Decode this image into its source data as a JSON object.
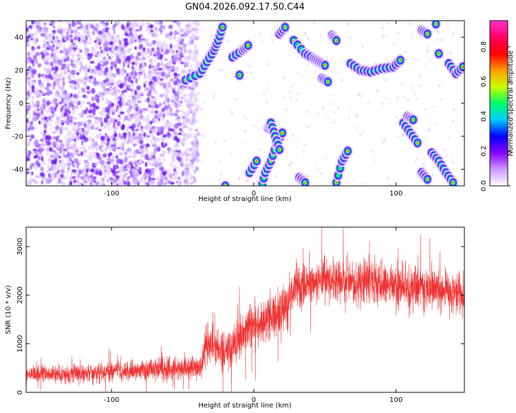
{
  "title": "GN04.2026.092.17.50.C44",
  "chart_data": [
    {
      "type": "heatmap",
      "xlabel": "Height of straight line (km)",
      "ylabel": "Frequency (Hz)",
      "xlim": [
        -160,
        148
      ],
      "ylim": [
        -50,
        50
      ],
      "x_ticks": [
        -100,
        0,
        100
      ],
      "y_ticks": [
        -40,
        -20,
        0,
        20,
        40
      ],
      "colorbar": {
        "label": "Normalized spectral amplitude",
        "range": [
          0,
          0.95
        ],
        "ticks": [
          0.0,
          0.2,
          0.4,
          0.6,
          0.8
        ],
        "colors": [
          "#ffffff",
          "#cc99ff",
          "#8800ff",
          "#0000ff",
          "#00ccff",
          "#00ff66",
          "#ccff00",
          "#ff9900",
          "#ff0000",
          "#ff0066",
          "#ff33cc"
        ]
      },
      "noise_region_x": [
        -160,
        -45
      ],
      "streaks": [
        {
          "x": [
            -48,
            -38,
            -33,
            -28,
            -25,
            -22
          ],
          "y": [
            14,
            18,
            25,
            32,
            38,
            46
          ]
        },
        {
          "x": [
            -15,
            -8,
            -4
          ],
          "y": [
            28,
            32,
            35
          ]
        },
        {
          "x": [
            -10
          ],
          "y": [
            17
          ]
        },
        {
          "x": [
            18,
            22
          ],
          "y": [
            42,
            46
          ]
        },
        {
          "x": [
            28,
            36,
            42,
            46,
            50
          ],
          "y": [
            38,
            30,
            27,
            25,
            23
          ]
        },
        {
          "x": [
            48,
            52
          ],
          "y": [
            15,
            13
          ]
        },
        {
          "x": [
            55,
            58
          ],
          "y": [
            41,
            38
          ]
        },
        {
          "x": [
            68,
            75,
            82,
            90,
            98,
            103
          ],
          "y": [
            24,
            20,
            19,
            21,
            22,
            26
          ]
        },
        {
          "x": [
            118,
            122
          ],
          "y": [
            44,
            42
          ]
        },
        {
          "x": [
            128
          ],
          "y": [
            48
          ]
        },
        {
          "x": [
            130
          ],
          "y": [
            30
          ]
        },
        {
          "x": [
            137,
            142,
            147
          ],
          "y": [
            24,
            18,
            22
          ]
        },
        {
          "x": [
            5,
            8,
            12,
            16,
            20
          ],
          "y": [
            -52,
            -42,
            -35,
            -25,
            -18
          ]
        },
        {
          "x": [
            10,
            12,
            15,
            18
          ],
          "y": [
            -15,
            -12,
            -20,
            -28
          ]
        },
        {
          "x": [
            -3,
            2
          ],
          "y": [
            -42,
            -35
          ]
        },
        {
          "x": [
            -20
          ],
          "y": [
            -50
          ]
        },
        {
          "x": [
            32,
            36
          ],
          "y": [
            -45,
            -48
          ]
        },
        {
          "x": [
            58,
            62,
            66
          ],
          "y": [
            -48,
            -35,
            -29
          ]
        },
        {
          "x": [
            105,
            110,
            115
          ],
          "y": [
            -12,
            -18,
            -24
          ]
        },
        {
          "x": [
            108,
            112
          ],
          "y": [
            -8,
            -10
          ]
        },
        {
          "x": [
            118,
            122
          ],
          "y": [
            -42,
            -46
          ]
        },
        {
          "x": [
            125,
            130,
            135,
            140
          ],
          "y": [
            -30,
            -35,
            -42,
            -48
          ]
        }
      ]
    },
    {
      "type": "line",
      "xlabel": "Height of straight line (km)",
      "ylabel": "SNR (10 * v/v)",
      "xlim": [
        -160,
        148
      ],
      "ylim": [
        0,
        3400
      ],
      "x_ticks": [
        -100,
        0,
        100
      ],
      "y_ticks": [
        0,
        1000,
        2000,
        3000
      ],
      "series": [
        {
          "color": "#ee3333",
          "profile_x": [
            -160,
            -130,
            -100,
            -70,
            -45,
            -37,
            -34,
            -30,
            -25,
            -20,
            -15,
            -10,
            -5,
            0,
            10,
            20,
            30,
            40,
            60,
            80,
            100,
            120,
            148
          ],
          "profile_mean": [
            350,
            380,
            420,
            470,
            500,
            520,
            900,
            1100,
            900,
            800,
            950,
            1150,
            1300,
            1350,
            1500,
            1650,
            2200,
            2250,
            2300,
            2250,
            2200,
            2150,
            2050
          ],
          "profile_spread": [
            180,
            200,
            220,
            250,
            270,
            300,
            450,
            500,
            500,
            450,
            500,
            500,
            500,
            500,
            550,
            550,
            500,
            480,
            500,
            480,
            500,
            480,
            480
          ]
        }
      ]
    }
  ]
}
